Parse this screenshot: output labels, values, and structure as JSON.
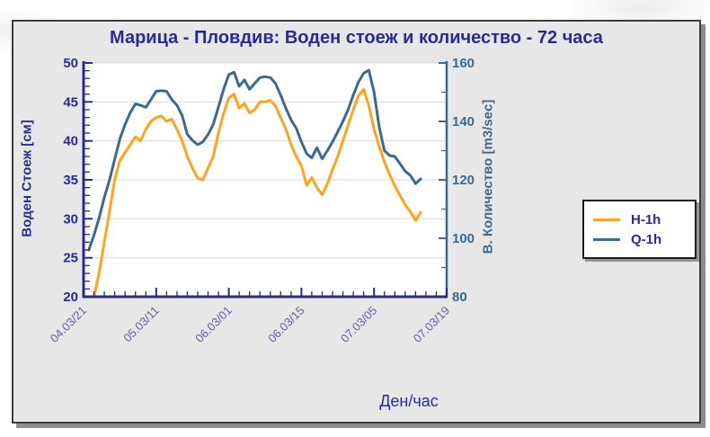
{
  "page": {
    "background": "#ffffff"
  },
  "panel": {
    "background": "#e7e7e7",
    "border_color": "#3c3c3c"
  },
  "chart_data": {
    "type": "line",
    "title": "Марица - Пловдив: Воден стоеж и количество - 72 часа",
    "xlabel": "Ден/час",
    "left_axis": {
      "label": "Воден Стоеж [см]",
      "min": 20,
      "max": 50,
      "ticks": [
        20,
        25,
        30,
        35,
        40,
        45,
        50
      ],
      "minor_tick_step": 1,
      "color": "#2a2a94"
    },
    "right_axis": {
      "label": "В. Количество [m3/sec]",
      "min": 80,
      "max": 160,
      "ticks": [
        80,
        100,
        120,
        140,
        160
      ],
      "minor_tick_step": 10,
      "color": "#3a6b8f"
    },
    "x_axis": {
      "domain_hours": [
        0,
        70
      ],
      "minor_tick_step_hours": 2,
      "color": "#2a2a7e",
      "major_ticks": [
        {
          "hour": 0,
          "label": "04.03/21"
        },
        {
          "hour": 14,
          "label": "05.03/11"
        },
        {
          "hour": 28,
          "label": "06.03/01"
        },
        {
          "hour": 42,
          "label": "06.03/15"
        },
        {
          "hour": 56,
          "label": "07.03/05"
        },
        {
          "hour": 70,
          "label": "07.03/19"
        }
      ]
    },
    "gridlines": {
      "left_values": [
        25,
        30,
        35,
        40,
        45,
        50
      ],
      "color": "#d9d9d9"
    },
    "x_labels": [
      "04.03/21",
      "04.03/22",
      "04.03/23",
      "05.03/00",
      "05.03/01",
      "05.03/02",
      "05.03/03",
      "05.03/04",
      "05.03/05",
      "05.03/06",
      "05.03/07",
      "05.03/08",
      "05.03/09",
      "05.03/10",
      "05.03/11",
      "05.03/12",
      "05.03/13",
      "05.03/14",
      "05.03/15",
      "05.03/16",
      "05.03/17",
      "05.03/18",
      "05.03/19",
      "05.03/20",
      "05.03/21",
      "05.03/22",
      "05.03/23",
      "06.03/00",
      "06.03/01",
      "06.03/02",
      "06.03/03",
      "06.03/04",
      "06.03/05",
      "06.03/06",
      "06.03/07",
      "06.03/08",
      "06.03/09",
      "06.03/10",
      "06.03/11",
      "06.03/12",
      "06.03/13",
      "06.03/14",
      "06.03/15",
      "06.03/16",
      "06.03/17",
      "06.03/18",
      "06.03/19",
      "06.03/20",
      "06.03/21",
      "06.03/22",
      "06.03/23",
      "07.03/00",
      "07.03/01",
      "07.03/02",
      "07.03/03",
      "07.03/04",
      "07.03/05",
      "07.03/06",
      "07.03/07",
      "07.03/08",
      "07.03/09",
      "07.03/10",
      "07.03/11",
      "07.03/12",
      "07.03/13",
      "07.03/14"
    ],
    "series": [
      {
        "name": "H-1h",
        "axis": "left",
        "unit": "см",
        "color": "#FFA418",
        "values": [
          null,
          null,
          20,
          23,
          27,
          31,
          35,
          37.5,
          38.5,
          39.5,
          40.5,
          40,
          41.5,
          42.5,
          43,
          43.2,
          42.5,
          42.8,
          41.5,
          40,
          38,
          36.5,
          35.2,
          35,
          36.5,
          38,
          41,
          43.5,
          45.5,
          46,
          44.2,
          44.8,
          43.6,
          44,
          45,
          45,
          45.2,
          44.5,
          43,
          41.5,
          39.5,
          38,
          36.8,
          34.3,
          35.3,
          34,
          33.1,
          34.5,
          36.3,
          38,
          40,
          42,
          44,
          45.8,
          46.6,
          44.5,
          41.5,
          39.3,
          37.3,
          35.7,
          34.2,
          33,
          31.8,
          30.9,
          29.8,
          30.8
        ]
      },
      {
        "name": "Q-1h",
        "axis": "right",
        "unit": "m3/sec",
        "color": "#3a6b8f",
        "values": [
          null,
          96,
          101,
          107,
          114,
          120,
          127,
          134,
          139,
          143,
          146,
          145.5,
          144.8,
          147.5,
          150.3,
          150.5,
          150.3,
          147.5,
          145.5,
          142,
          135.6,
          133.5,
          132,
          133,
          135.5,
          139,
          145,
          151,
          156,
          156.8,
          152,
          154.2,
          151,
          153,
          155,
          155.3,
          155,
          153,
          149,
          144.5,
          140.5,
          137.7,
          133,
          129,
          127.5,
          131,
          127.2,
          130,
          133,
          136.5,
          140,
          144,
          149,
          153.5,
          156.5,
          157.5,
          150,
          138,
          130,
          128.3,
          128,
          125.5,
          123,
          121.5,
          118.7,
          120.3
        ]
      }
    ],
    "legend": {
      "position": "right"
    }
  }
}
